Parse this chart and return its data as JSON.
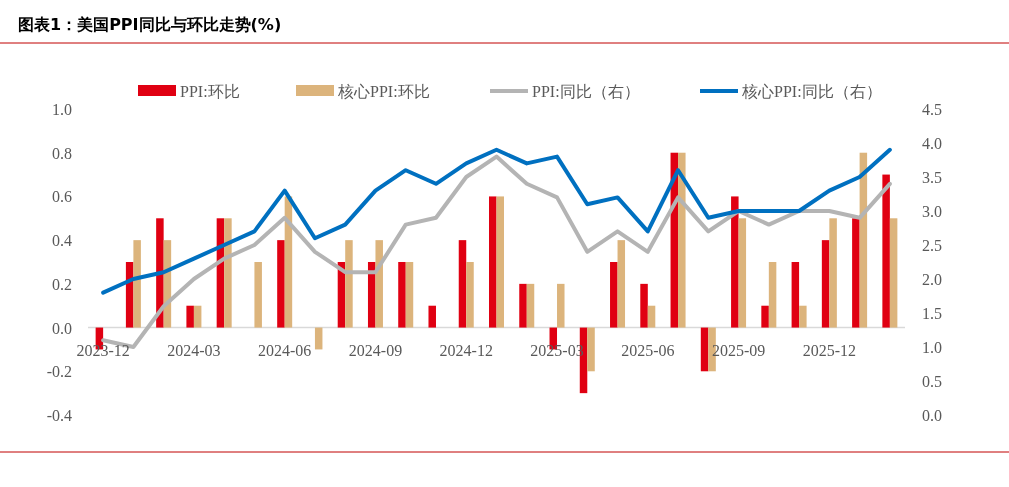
{
  "chart_data": {
    "type": "bar",
    "title": "图表1：美国PPI同比与环比走势(%)",
    "categories": [
      "2023-12",
      null,
      null,
      "2024-03",
      null,
      null,
      "2024-06",
      null,
      null,
      "2024-09",
      null,
      null,
      "2024-12",
      null,
      null,
      "2025-03",
      null,
      null,
      "2025-06",
      null,
      null,
      "2025-09",
      null,
      null,
      "2025-12",
      null,
      null
    ],
    "series": [
      {
        "name": "PPI:环比",
        "color": "#e00012",
        "values": [
          -0.1,
          0.3,
          0.5,
          0.1,
          0.5,
          0,
          0.4,
          0,
          0.3,
          0.3,
          0.3,
          0.1,
          0.4,
          0.6,
          0.2,
          -0.1,
          -0.3,
          0.3,
          0.2,
          0.8,
          -0.2,
          0.6,
          0.1,
          0.3,
          0.4,
          0.5,
          0.7
        ]
      },
      {
        "name": "核心PPI:环比",
        "color": "#dcb47c",
        "values": [
          0,
          0.4,
          0.4,
          0.1,
          0.5,
          0.3,
          0.6,
          -0.1,
          0.4,
          0.4,
          0.3,
          0,
          0.3,
          0.6,
          0.2,
          0.2,
          -0.2,
          0.4,
          0.1,
          0.8,
          -0.2,
          0.5,
          0.3,
          0.1,
          0.5,
          0.8,
          0.5
        ]
      },
      {
        "name": "PPI:同比（右）",
        "type": "line",
        "axis": "y2",
        "color": "#b4b4b4",
        "values": [
          1.1,
          1.0,
          1.6,
          2.0,
          2.3,
          2.5,
          2.9,
          2.4,
          2.1,
          2.1,
          2.8,
          2.9,
          3.5,
          3.8,
          3.4,
          3.2,
          2.4,
          2.7,
          2.4,
          3.2,
          2.7,
          3.0,
          2.8,
          3.0,
          3.0,
          2.9,
          3.4
        ]
      },
      {
        "name": "核心PPI:同比（右）",
        "type": "line",
        "axis": "y2",
        "color": "#0070c0",
        "values": [
          1.8,
          2.0,
          2.1,
          2.3,
          2.5,
          2.7,
          3.3,
          2.6,
          2.8,
          3.3,
          3.6,
          3.4,
          3.7,
          3.9,
          3.7,
          3.8,
          3.1,
          3.2,
          2.7,
          3.6,
          2.9,
          3.0,
          3.0,
          3.0,
          3.3,
          3.5,
          3.9
        ]
      }
    ],
    "ylim": [
      -0.4,
      1.0
    ],
    "yticks": [
      {
        "value": -0.4,
        "label": "-0.4"
      },
      {
        "value": -0.2,
        "label": "-0.2"
      },
      {
        "value": 0,
        "label": "0.0"
      },
      {
        "value": 0.2,
        "label": "0.2"
      },
      {
        "value": 0.4,
        "label": "0.4"
      },
      {
        "value": 0.6,
        "label": "0.6"
      },
      {
        "value": 0.8,
        "label": "0.8"
      },
      {
        "value": 1.0,
        "label": "1.0"
      }
    ],
    "y2lim": [
      0,
      4.5
    ],
    "y2ticks": [
      {
        "value": 0,
        "label": "0.0"
      },
      {
        "value": 0.5,
        "label": "0.5"
      },
      {
        "value": 1.0,
        "label": "1.0"
      },
      {
        "value": 1.5,
        "label": "1.5"
      },
      {
        "value": 2.0,
        "label": "2.0"
      },
      {
        "value": 2.5,
        "label": "2.5"
      },
      {
        "value": 3.0,
        "label": "3.0"
      },
      {
        "value": 3.5,
        "label": "3.5"
      },
      {
        "value": 4.0,
        "label": "4.0"
      },
      {
        "value": 4.5,
        "label": "4.5"
      }
    ],
    "grid": false,
    "legend": "top"
  }
}
